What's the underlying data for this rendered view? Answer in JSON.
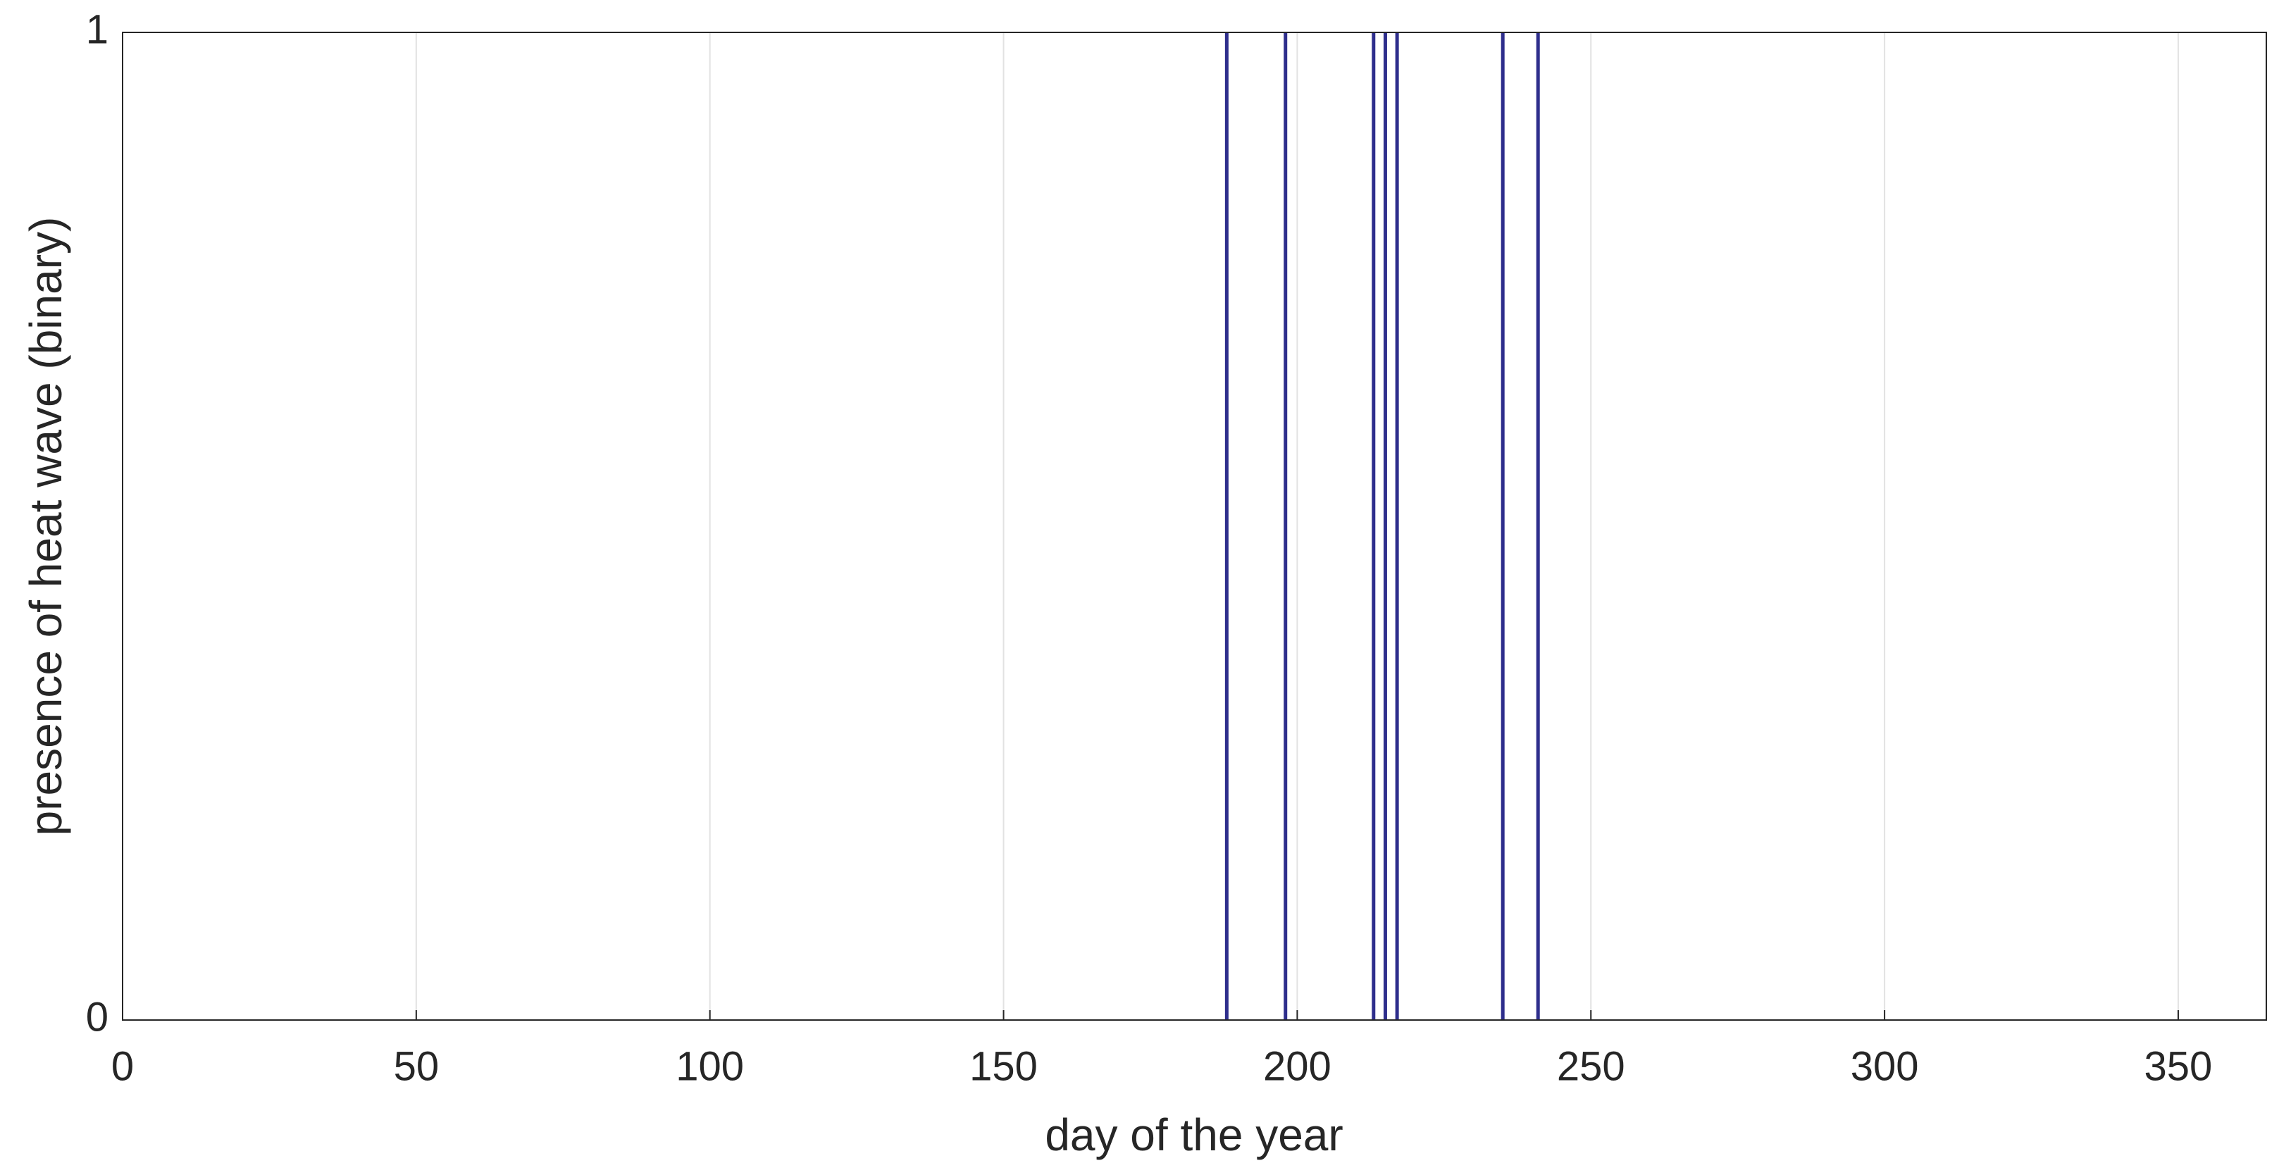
{
  "chart_data": {
    "type": "stem",
    "x_label": "day of the year",
    "y_label": "presence of heat wave (binary)",
    "x": [
      188,
      198,
      213,
      215,
      217,
      235,
      241
    ],
    "values": [
      1,
      1,
      1,
      1,
      1,
      1,
      1
    ],
    "color": "#2e2e8c",
    "xlim": [
      0,
      365
    ],
    "xticks": [
      0,
      50,
      100,
      150,
      200,
      250,
      300,
      350
    ],
    "ylim": [
      0,
      1
    ],
    "yticks": [
      0,
      1
    ],
    "xgrid": true
  }
}
